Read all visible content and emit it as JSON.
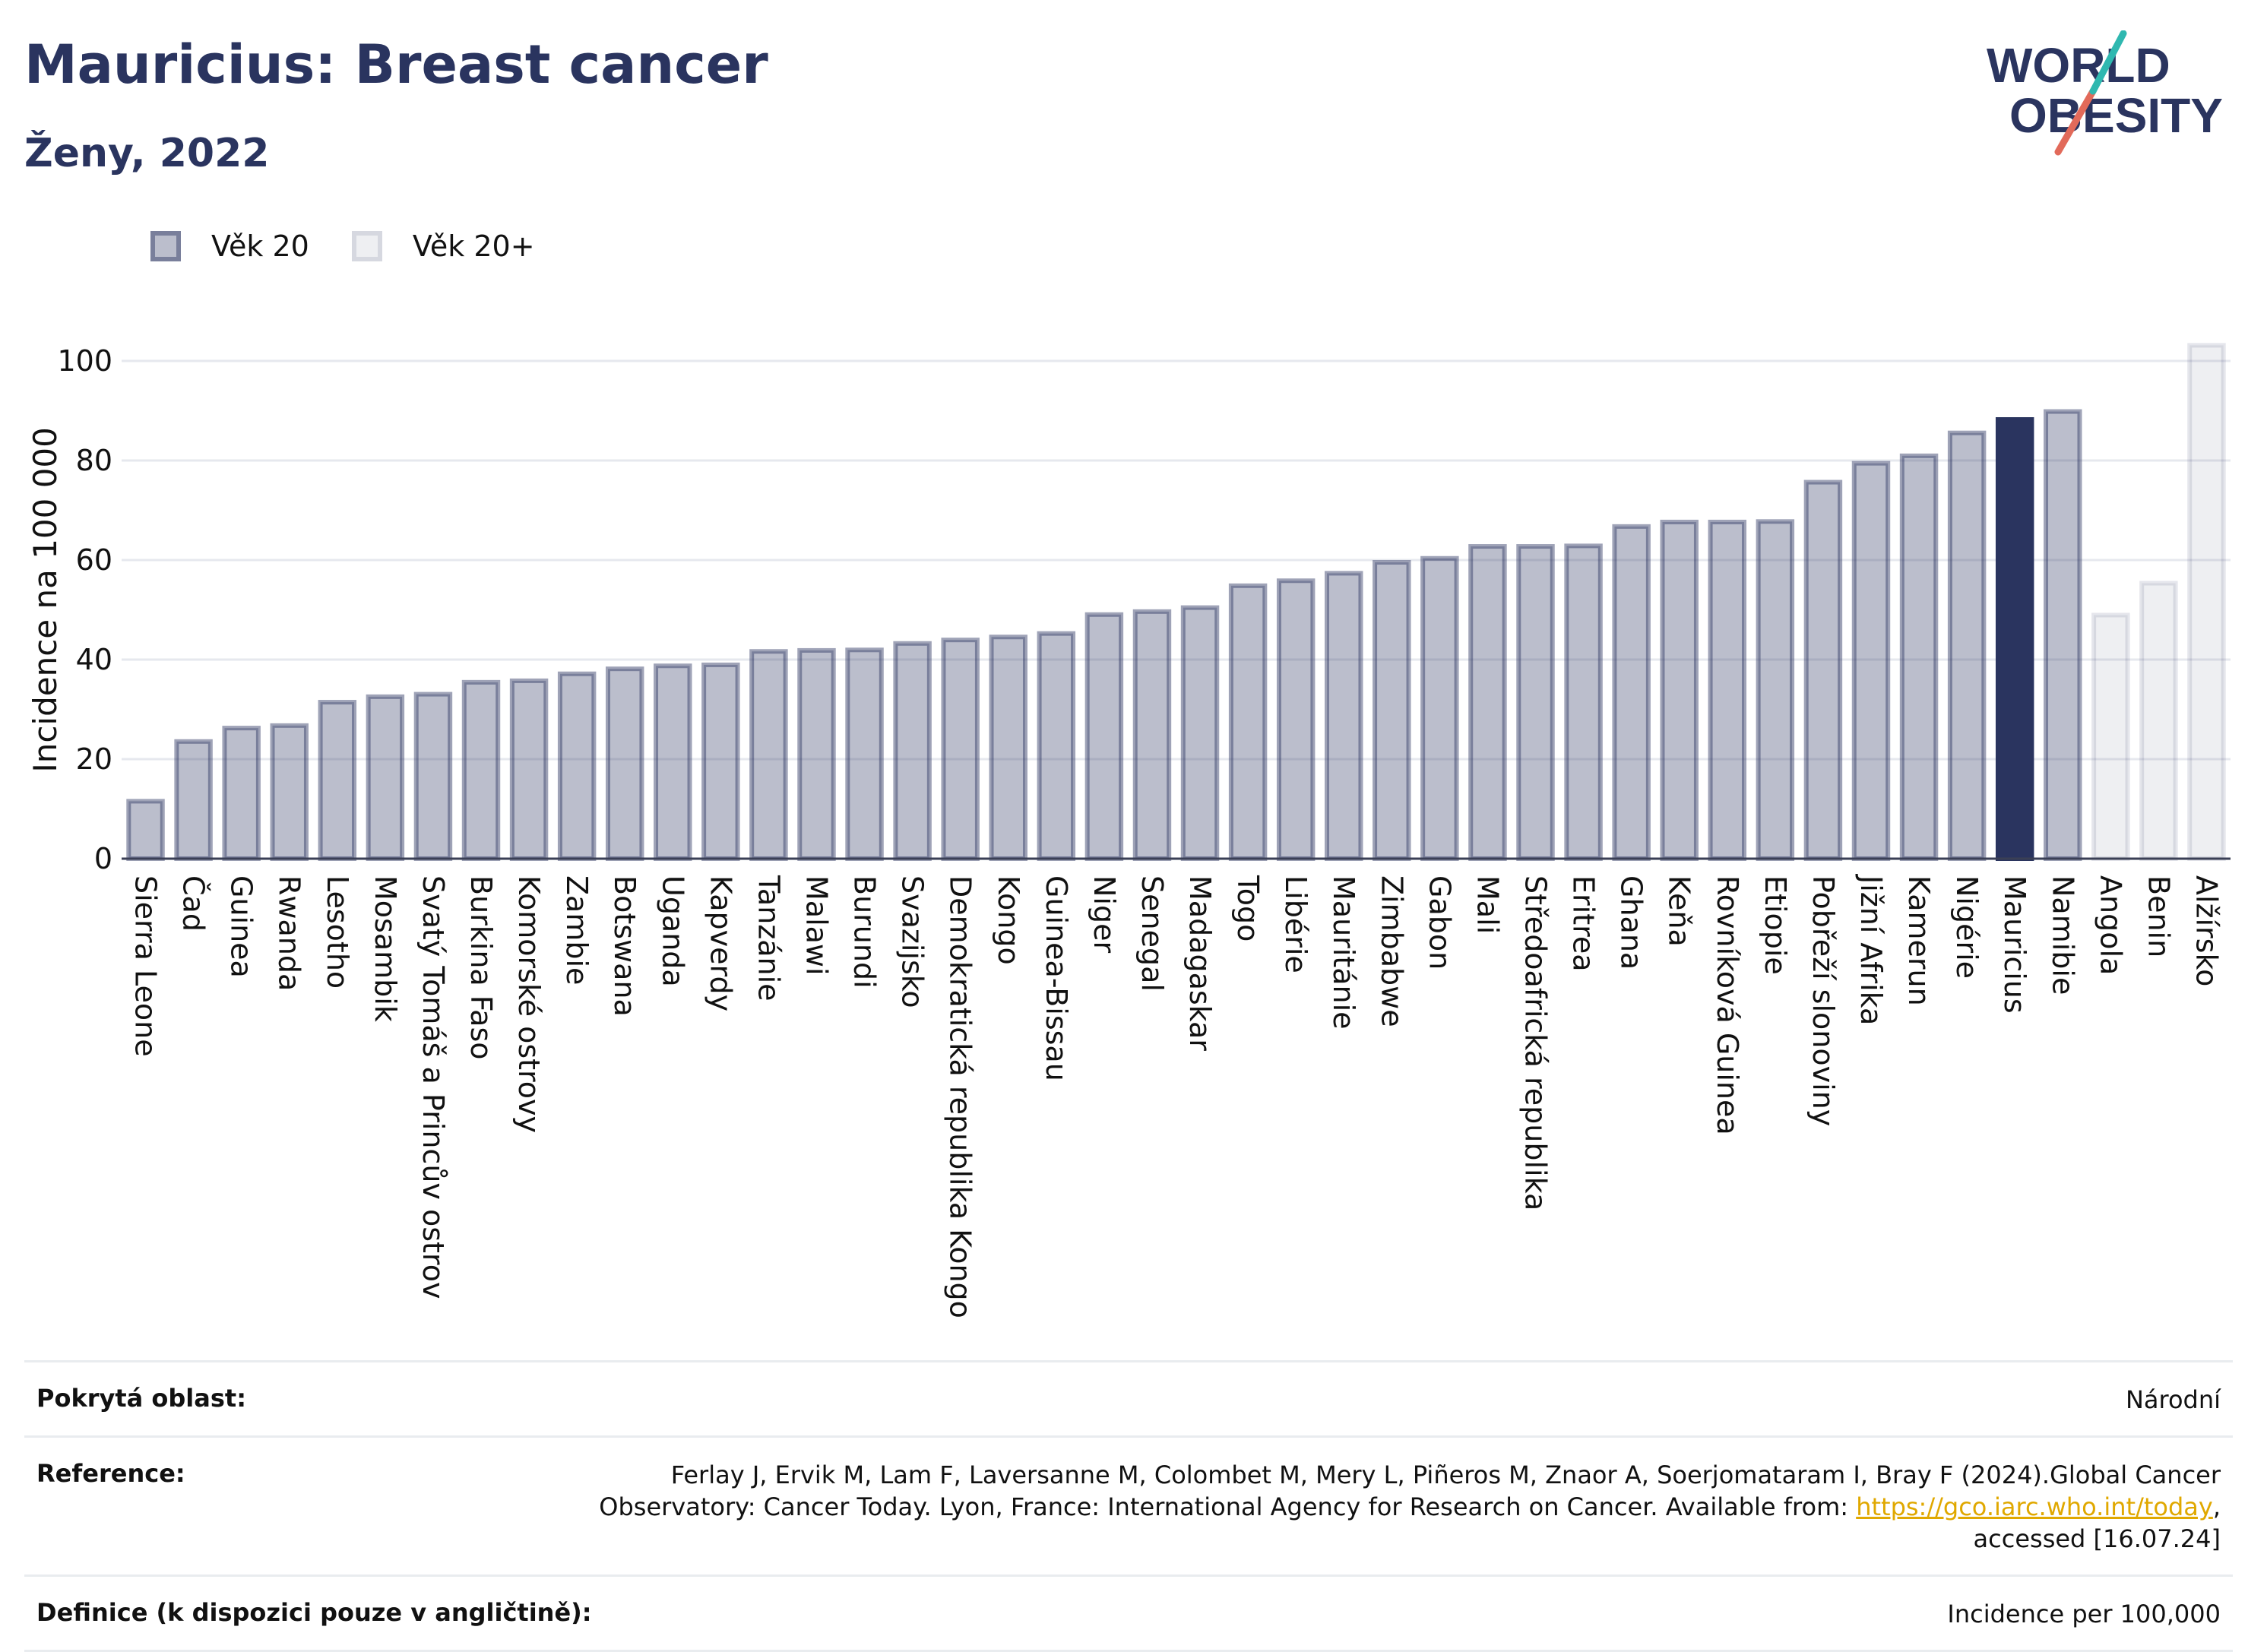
{
  "header": {
    "title": "Mauricius: Breast cancer",
    "subtitle": "Ženy, 2022"
  },
  "logo": {
    "line1": "WORLD",
    "line2": "OBESITY"
  },
  "legend": [
    {
      "label": "Věk 20",
      "color": "#2a345f"
    },
    {
      "label": "Věk 20+",
      "color": "#c9ccd8"
    }
  ],
  "chart_data": {
    "type": "bar",
    "title": "Mauricius: Breast cancer",
    "subtitle": "Ženy, 2022",
    "ylabel": "Incidence na 100 000",
    "xlabel": "",
    "ylim": [
      0,
      105
    ],
    "yticks": [
      0,
      20,
      40,
      60,
      80,
      100
    ],
    "grid": true,
    "legend_position": "top-left",
    "highlight": "Mauricius",
    "colors": {
      "age20": "#2a345f",
      "age20plus": "#c9ccd8",
      "highlight": "#2a345f"
    },
    "categories": [
      "Sierra Leone",
      "Čad",
      "Guinea",
      "Rwanda",
      "Lesotho",
      "Mosambik",
      "Svatý Tomáš a Princův ostrov",
      "Burkina Faso",
      "Komorské ostrovy",
      "Zambie",
      "Botswana",
      "Uganda",
      "Kapverdy",
      "Tanzánie",
      "Malawi",
      "Burundi",
      "Svazijsko",
      "Demokratická republika Kongo",
      "Kongo",
      "Guinea-Bissau",
      "Niger",
      "Senegal",
      "Madagaskar",
      "Togo",
      "Libérie",
      "Mauritánie",
      "Zimbabwe",
      "Gabon",
      "Mali",
      "Středoafrická republika",
      "Eritrea",
      "Ghana",
      "Keňa",
      "Rovníková Guinea",
      "Etiopie",
      "Pobřeží slonoviny",
      "Jižní Afrika",
      "Kamerun",
      "Nigérie",
      "Mauricius",
      "Namibie",
      "Angola",
      "Benin",
      "Alžírsko"
    ],
    "values": [
      12,
      24,
      26.7,
      27.2,
      31.9,
      33,
      33.5,
      35.9,
      36.2,
      37.6,
      38.6,
      39.2,
      39.4,
      42.1,
      42.3,
      42.4,
      43.7,
      44.4,
      45,
      45.7,
      49.5,
      50.1,
      50.9,
      55.3,
      56.3,
      57.8,
      60,
      60.8,
      63.2,
      63.2,
      63.3,
      67.2,
      68.1,
      68.1,
      68.2,
      76.1,
      79.9,
      81.4,
      86,
      88.7,
      90.3,
      49.4,
      55.8,
      103.6
    ],
    "series_group": [
      "Věk 20",
      "Věk 20",
      "Věk 20",
      "Věk 20",
      "Věk 20",
      "Věk 20",
      "Věk 20",
      "Věk 20",
      "Věk 20",
      "Věk 20",
      "Věk 20",
      "Věk 20",
      "Věk 20",
      "Věk 20",
      "Věk 20",
      "Věk 20",
      "Věk 20",
      "Věk 20",
      "Věk 20",
      "Věk 20",
      "Věk 20",
      "Věk 20",
      "Věk 20",
      "Věk 20",
      "Věk 20",
      "Věk 20",
      "Věk 20",
      "Věk 20",
      "Věk 20",
      "Věk 20",
      "Věk 20",
      "Věk 20",
      "Věk 20",
      "Věk 20",
      "Věk 20",
      "Věk 20",
      "Věk 20",
      "Věk 20",
      "Věk 20",
      "Věk 20",
      "Věk 20",
      "Věk 20+",
      "Věk 20+",
      "Věk 20+"
    ]
  },
  "info": {
    "coverage_label": "Pokrytá oblast:",
    "coverage_value": "Národní",
    "reference_label": "Reference:",
    "reference_text": "Ferlay J, Ervik M, Lam F, Laversanne M, Colombet M, Mery L, Piñeros M, Znaor A, Soerjomataram I, Bray F (2024).Global Cancer Observatory: Cancer Today. Lyon, France: International Agency for Research on Cancer. Available from: ",
    "reference_link": "https://gco.iarc.who.int/today",
    "reference_suffix": ", accessed [16.07.24]",
    "definition_label": "Definice (k dispozici pouze v angličtině):",
    "definition_value": "Incidence per 100,000"
  }
}
